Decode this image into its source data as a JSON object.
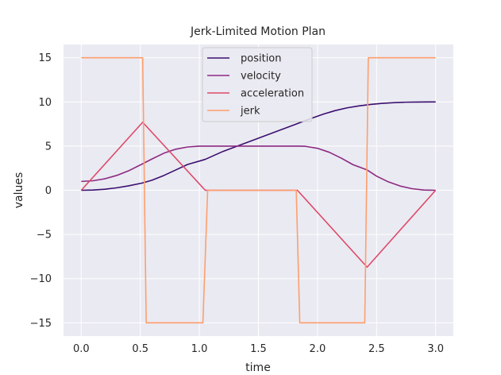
{
  "chart_data": {
    "type": "line",
    "title": "Jerk-Limited Motion Plan",
    "xlabel": "time",
    "ylabel": "values",
    "xlim": [
      -0.15,
      3.15
    ],
    "ylim": [
      -16.5,
      16.5
    ],
    "xticks": [
      0.0,
      0.5,
      1.0,
      1.5,
      2.0,
      2.5,
      3.0
    ],
    "xtick_labels": [
      "0.0",
      "0.5",
      "1.0",
      "1.5",
      "2.0",
      "2.5",
      "3.0"
    ],
    "yticks": [
      -15,
      -10,
      -5,
      0,
      5,
      10,
      15
    ],
    "ytick_labels": [
      "−15",
      "−10",
      "−5",
      "0",
      "5",
      "10",
      "15"
    ],
    "grid": true,
    "legend_position": "top-center",
    "background_color": "#eaeaf2",
    "grid_color": "#ffffff",
    "series": [
      {
        "name": "position",
        "color": "#3b0f70",
        "x": [
          0.0,
          0.1,
          0.2,
          0.3,
          0.4,
          0.52,
          0.6,
          0.7,
          0.8,
          0.9,
          1.05,
          1.2,
          1.4,
          1.6,
          1.8,
          1.95,
          2.05,
          2.15,
          2.25,
          2.35,
          2.45,
          2.55,
          2.65,
          2.75,
          2.85,
          2.95,
          3.0
        ],
        "values": [
          0.0,
          0.03,
          0.12,
          0.28,
          0.5,
          0.83,
          1.15,
          1.68,
          2.3,
          2.92,
          3.5,
          4.4,
          5.4,
          6.4,
          7.4,
          8.15,
          8.62,
          9.02,
          9.33,
          9.55,
          9.72,
          9.84,
          9.92,
          9.97,
          9.99,
          10.0,
          10.0
        ]
      },
      {
        "name": "velocity",
        "color": "#8c2981",
        "x": [
          0.0,
          0.1,
          0.2,
          0.3,
          0.4,
          0.52,
          0.6,
          0.7,
          0.8,
          0.9,
          1.0,
          1.05,
          1.2,
          1.4,
          1.6,
          1.8,
          1.85,
          1.9,
          2.0,
          2.1,
          2.2,
          2.3,
          2.42,
          2.5,
          2.6,
          2.7,
          2.8,
          2.9,
          3.0
        ],
        "values": [
          1.0,
          1.08,
          1.3,
          1.68,
          2.2,
          3.0,
          3.55,
          4.2,
          4.65,
          4.9,
          5.0,
          5.0,
          5.0,
          5.0,
          5.0,
          5.0,
          5.0,
          4.97,
          4.75,
          4.3,
          3.65,
          2.9,
          2.3,
          1.6,
          0.95,
          0.48,
          0.18,
          0.03,
          0.0
        ]
      },
      {
        "name": "acceleration",
        "color": "#de4968",
        "x": [
          0.0,
          0.52,
          1.05,
          1.8,
          1.83,
          2.42,
          3.0
        ],
        "values": [
          0.0,
          7.7,
          0.0,
          0.0,
          0.0,
          -8.7,
          0.0
        ]
      },
      {
        "name": "jerk",
        "color": "#fe9f6d",
        "x": [
          0.0,
          0.52,
          0.55,
          1.03,
          1.07,
          1.82,
          1.85,
          2.4,
          2.43,
          3.0
        ],
        "values": [
          15.0,
          15.0,
          -15.0,
          -15.0,
          0.0,
          0.0,
          -15.0,
          -15.0,
          15.0,
          15.0
        ]
      }
    ]
  }
}
